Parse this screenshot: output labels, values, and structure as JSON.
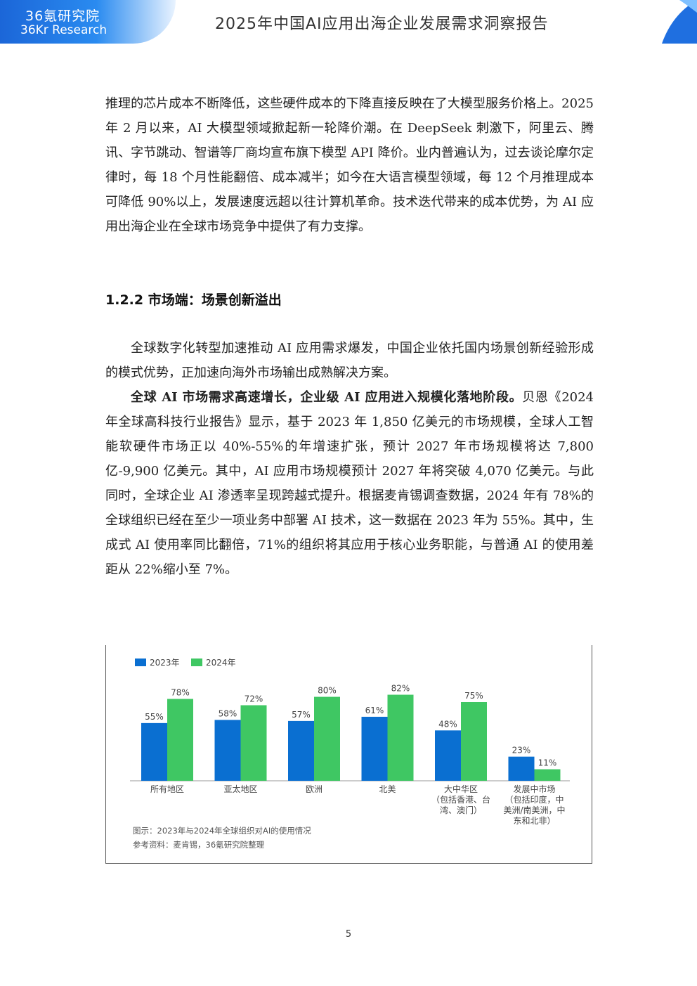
{
  "header": {
    "logo_cn": "36氪研究院",
    "logo_en": "36Kr Research",
    "title": "2025年中国AI应用出海企业发展需求洞察报告"
  },
  "intro_paragraph": "推理的芯片成本不断降低，这些硬件成本的下降直接反映在了大模型服务价格上。2025 年 2 月以来，AI 大模型领域掀起新一轮降价潮。在 DeepSeek 刺激下，阿里云、腾讯、字节跳动、智谱等厂商均宣布旗下模型 API 降价。业内普遍认为，过去谈论摩尔定律时，每 18 个月性能翻倍、成本减半；如今在大语言模型领域，每 12 个月推理成本可降低 90%以上，发展速度远超以往计算机革命。技术迭代带来的成本优势，为 AI 应用出海企业在全球市场竞争中提供了有力支撑。",
  "section_heading": "1.2.2 市场端：场景创新溢出",
  "paragraph_2": "全球数字化转型加速推动 AI 应用需求爆发，中国企业依托国内场景创新经验形成的模式优势，正加速向海外市场输出成熟解决方案。",
  "paragraph_3_bold": "全球 AI 市场需求高速增长，企业级 AI 应用进入规模化落地阶段。",
  "paragraph_3_rest": "贝恩《2024 年全球高科技行业报告》显示，基于 2023 年 1,850 亿美元的市场规模，全球人工智能软硬件市场正以 40%-55%的年增速扩张，预计 2027 年市场规模将达 7,800 亿-9,900 亿美元。其中，AI 应用市场规模预计 2027 年将突破 4,070 亿美元。与此同时，全球企业 AI 渗透率呈现跨越式提升。根据麦肯锡调查数据，2024 年有 78%的全球组织已经在至少一项业务中部署 AI 技术，这一数据在 2023 年为 55%。其中，生成式 AI 使用率同比翻倍，71%的组织将其应用于核心业务职能，与普通 AI 的使用差距从 22%缩小至 7%。",
  "chart_data": {
    "type": "bar",
    "categories": [
      [
        "所有地区"
      ],
      [
        "亚太地区"
      ],
      [
        "欧洲"
      ],
      [
        "北美"
      ],
      [
        "大中华区",
        "（包括香港、台",
        "湾、澳门）"
      ],
      [
        "发展中市场",
        "（包括印度，中",
        "美洲/南美洲，中",
        "东和北非）"
      ]
    ],
    "series": [
      {
        "name": "2023年",
        "color": "#0a6fd1",
        "values": [
          55,
          58,
          57,
          61,
          48,
          23
        ]
      },
      {
        "name": "2024年",
        "color": "#3fc763",
        "values": [
          78,
          72,
          80,
          82,
          75,
          11
        ]
      }
    ],
    "value_suffix": "%",
    "ylim": [
      0,
      90
    ],
    "legend_position": "top-left",
    "caption": "图示：2023年与2024年全球组织对AI的使用情况",
    "source": "参考资料：麦肯锡，36氪研究院整理"
  },
  "page_number": "5",
  "colors": {
    "brand_blue": "#1b66d8",
    "bar_2023": "#0a6fd1",
    "bar_2024": "#3fc763"
  }
}
